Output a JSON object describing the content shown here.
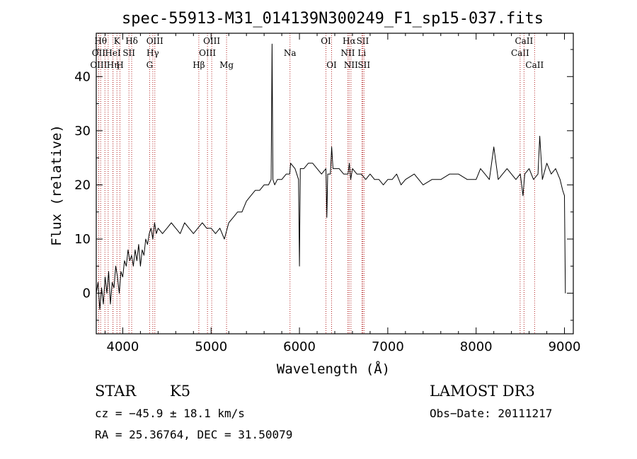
{
  "chart_data": {
    "type": "line",
    "title": "spec-55913-M31_014139N300249_F1_sp15-037.fits",
    "xlabel": "Wavelength (Å)",
    "ylabel": "Flux (relative)",
    "xlim": [
      3700,
      9100
    ],
    "ylim": [
      -7.5,
      48
    ],
    "xticks": [
      4000,
      5000,
      6000,
      7000,
      8000,
      9000
    ],
    "yticks": [
      0,
      10,
      20,
      30,
      40
    ],
    "grid": false,
    "series": [
      {
        "name": "spectrum",
        "x": [
          3700,
          3720,
          3740,
          3760,
          3780,
          3800,
          3820,
          3840,
          3860,
          3880,
          3900,
          3920,
          3940,
          3960,
          3980,
          4000,
          4020,
          4040,
          4060,
          4080,
          4100,
          4120,
          4140,
          4160,
          4180,
          4200,
          4220,
          4240,
          4260,
          4280,
          4300,
          4320,
          4340,
          4360,
          4380,
          4400,
          4450,
          4500,
          4550,
          4600,
          4650,
          4700,
          4750,
          4800,
          4850,
          4900,
          4950,
          5000,
          5050,
          5100,
          5150,
          5200,
          5250,
          5300,
          5350,
          5400,
          5450,
          5500,
          5550,
          5600,
          5650,
          5680,
          5690,
          5700,
          5720,
          5750,
          5800,
          5850,
          5890,
          5900,
          5950,
          5990,
          6000,
          6010,
          6050,
          6100,
          6150,
          6200,
          6250,
          6300,
          6310,
          6320,
          6350,
          6365,
          6380,
          6400,
          6450,
          6500,
          6550,
          6565,
          6580,
          6600,
          6650,
          6700,
          6750,
          6800,
          6850,
          6900,
          6950,
          7000,
          7050,
          7100,
          7150,
          7200,
          7300,
          7400,
          7500,
          7600,
          7700,
          7800,
          7900,
          8000,
          8050,
          8100,
          8150,
          8200,
          8250,
          8300,
          8350,
          8400,
          8450,
          8500,
          8530,
          8550,
          8600,
          8650,
          8700,
          8720,
          8750,
          8800,
          8850,
          8900,
          8950,
          8980,
          9000,
          9010
        ],
        "values": [
          0,
          2,
          -3,
          1,
          -2,
          3,
          0,
          4,
          -2,
          2,
          1,
          5,
          3,
          0,
          4,
          3,
          6,
          5,
          8,
          6,
          7,
          5,
          8,
          6,
          9,
          5,
          8,
          7,
          10,
          9,
          11,
          12,
          10,
          13,
          11,
          12,
          11,
          12,
          13,
          12,
          11,
          13,
          12,
          11,
          12,
          13,
          12,
          12,
          11,
          12,
          10,
          13,
          14,
          15,
          15,
          17,
          18,
          19,
          19,
          20,
          20,
          21,
          46,
          21,
          20,
          21,
          21,
          22,
          22,
          24,
          23,
          21,
          5,
          23,
          23,
          24,
          24,
          23,
          22,
          23,
          14,
          22,
          22,
          27,
          23,
          23,
          23,
          22,
          22,
          24,
          21,
          23,
          22,
          22,
          21,
          22,
          21,
          21,
          20,
          21,
          21,
          22,
          20,
          21,
          22,
          20,
          21,
          21,
          22,
          22,
          21,
          21,
          23,
          22,
          21,
          27,
          21,
          22,
          23,
          22,
          21,
          22,
          18,
          22,
          23,
          21,
          22,
          29,
          21,
          24,
          22,
          23,
          21,
          19,
          18,
          0
        ]
      }
    ],
    "line_markers": [
      {
        "wl": 3750,
        "text": "Hθ",
        "row": 1
      },
      {
        "wl": 3727,
        "text": "OII",
        "row": 2
      },
      {
        "wl": 3727,
        "text": "OIII",
        "row": 3
      },
      {
        "wl": 3798,
        "text": "",
        "row": 0
      },
      {
        "wl": 3835,
        "text": "",
        "row": 0
      },
      {
        "wl": 3889,
        "text": "HeI",
        "row": 2
      },
      {
        "wl": 3889,
        "text": "Hη",
        "row": 3
      },
      {
        "wl": 3934,
        "text": "K",
        "row": 1
      },
      {
        "wl": 3968,
        "text": "H",
        "row": 3
      },
      {
        "wl": 4070,
        "text": "SII",
        "row": 2
      },
      {
        "wl": 4101,
        "text": "Hδ",
        "row": 1
      },
      {
        "wl": 4304,
        "text": "G",
        "row": 3
      },
      {
        "wl": 4340,
        "text": "Hγ",
        "row": 2
      },
      {
        "wl": 4363,
        "text": "OIII",
        "row": 1
      },
      {
        "wl": 4861,
        "text": "Hβ",
        "row": 3
      },
      {
        "wl": 4959,
        "text": "OIII",
        "row": 2
      },
      {
        "wl": 5007,
        "text": "OIII",
        "row": 1
      },
      {
        "wl": 5175,
        "text": "Mg",
        "row": 3
      },
      {
        "wl": 5893,
        "text": "Na",
        "row": 2
      },
      {
        "wl": 6300,
        "text": "OI",
        "row": 1
      },
      {
        "wl": 6364,
        "text": "OI",
        "row": 3
      },
      {
        "wl": 6548,
        "text": "NII",
        "row": 2
      },
      {
        "wl": 6563,
        "text": "Hα",
        "row": 1
      },
      {
        "wl": 6583,
        "text": "NII",
        "row": 3
      },
      {
        "wl": 6707,
        "text": "Li",
        "row": 2
      },
      {
        "wl": 6716,
        "text": "SII",
        "row": 1
      },
      {
        "wl": 6731,
        "text": "SII",
        "row": 3
      },
      {
        "wl": 8498,
        "text": "CaII",
        "row": 2
      },
      {
        "wl": 8542,
        "text": "CaII",
        "row": 1
      },
      {
        "wl": 8662,
        "text": "CaII",
        "row": 3
      }
    ]
  },
  "info": {
    "class": "STAR",
    "subclass": "K5",
    "survey": "LAMOST DR3",
    "cz": "cz = −45.9 ± 18.1 km/s",
    "obs_date": "Obs−Date: 20111217",
    "coords": "RA =  25.36764, DEC =  31.50079"
  },
  "colors": {
    "spectrum": "#000000",
    "markers": "#b22222",
    "axes": "#000000"
  }
}
